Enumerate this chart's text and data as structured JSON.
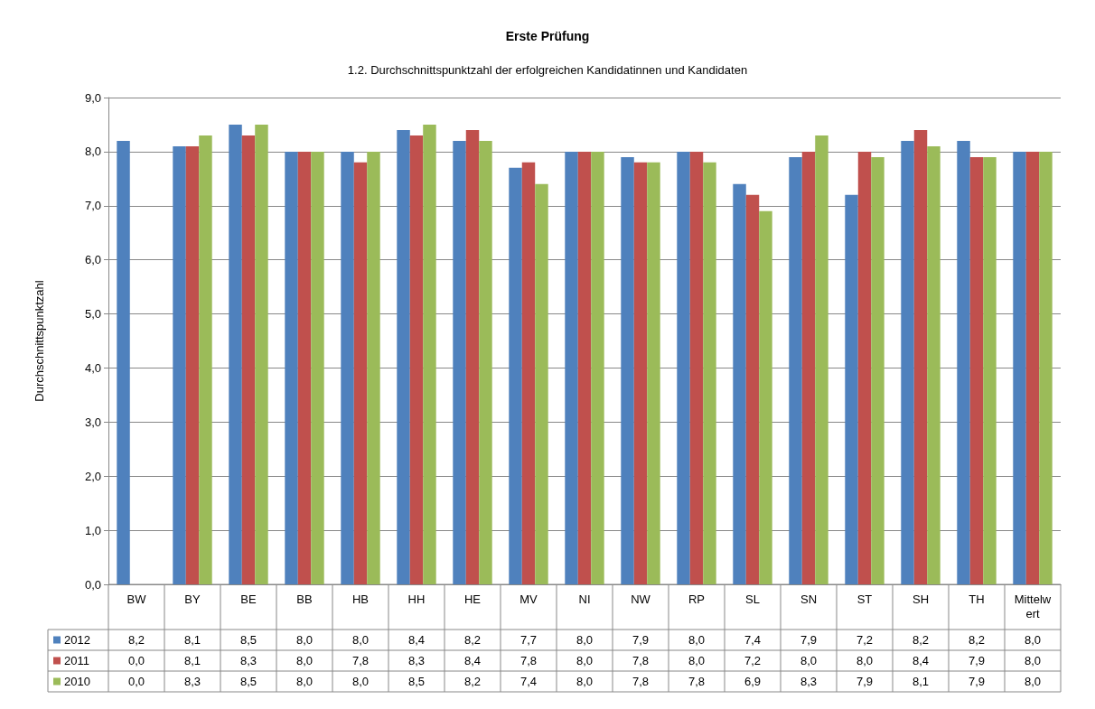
{
  "chart_data": {
    "type": "bar",
    "title": "Erste Prüfung",
    "subtitle": "1.2. Durchschnittspunktzahl der erfolgreichen Kandidatinnen und Kandidaten",
    "ylabel": "Durchschnittspunktzahl",
    "categories": [
      "BW",
      "BY",
      "BE",
      "BB",
      "HB",
      "HH",
      "HE",
      "MV",
      "NI",
      "NW",
      "RP",
      "SL",
      "SN",
      "ST",
      "SH",
      "TH",
      "Mittelwert"
    ],
    "series": [
      {
        "name": "2012",
        "color": "#4f81bd",
        "values": [
          8.2,
          8.1,
          8.5,
          8.0,
          8.0,
          8.4,
          8.2,
          7.7,
          8.0,
          7.9,
          8.0,
          7.4,
          7.9,
          7.2,
          8.2,
          8.2,
          8.0
        ],
        "value_labels": [
          "8,2",
          "8,1",
          "8,5",
          "8,0",
          "8,0",
          "8,4",
          "8,2",
          "7,7",
          "8,0",
          "7,9",
          "8,0",
          "7,4",
          "7,9",
          "7,2",
          "8,2",
          "8,2",
          "8,0"
        ]
      },
      {
        "name": "2011",
        "color": "#c0504d",
        "values": [
          0.0,
          8.1,
          8.3,
          8.0,
          7.8,
          8.3,
          8.4,
          7.8,
          8.0,
          7.8,
          8.0,
          7.2,
          8.0,
          8.0,
          8.4,
          7.9,
          8.0
        ],
        "value_labels": [
          "0,0",
          "8,1",
          "8,3",
          "8,0",
          "7,8",
          "8,3",
          "8,4",
          "7,8",
          "8,0",
          "7,8",
          "8,0",
          "7,2",
          "8,0",
          "8,0",
          "8,4",
          "7,9",
          "8,0"
        ]
      },
      {
        "name": "2010",
        "color": "#9bbb59",
        "values": [
          0.0,
          8.3,
          8.5,
          8.0,
          8.0,
          8.5,
          8.2,
          7.4,
          8.0,
          7.8,
          7.8,
          6.9,
          8.3,
          7.9,
          8.1,
          7.9,
          8.0
        ],
        "value_labels": [
          "0,0",
          "8,3",
          "8,5",
          "8,0",
          "8,0",
          "8,5",
          "8,2",
          "7,4",
          "8,0",
          "7,8",
          "7,8",
          "6,9",
          "8,3",
          "7,9",
          "8,1",
          "7,9",
          "8,0"
        ]
      }
    ],
    "ylim": [
      0,
      9
    ],
    "yticks": [
      {
        "value": 0,
        "label": "0,0"
      },
      {
        "value": 1,
        "label": "1,0"
      },
      {
        "value": 2,
        "label": "2,0"
      },
      {
        "value": 3,
        "label": "3,0"
      },
      {
        "value": 4,
        "label": "4,0"
      },
      {
        "value": 5,
        "label": "5,0"
      },
      {
        "value": 6,
        "label": "6,0"
      },
      {
        "value": 7,
        "label": "7,0"
      },
      {
        "value": 8,
        "label": "8,0"
      },
      {
        "value": 9,
        "label": "9,0"
      }
    ],
    "grid": "y",
    "legend": "bottom"
  }
}
